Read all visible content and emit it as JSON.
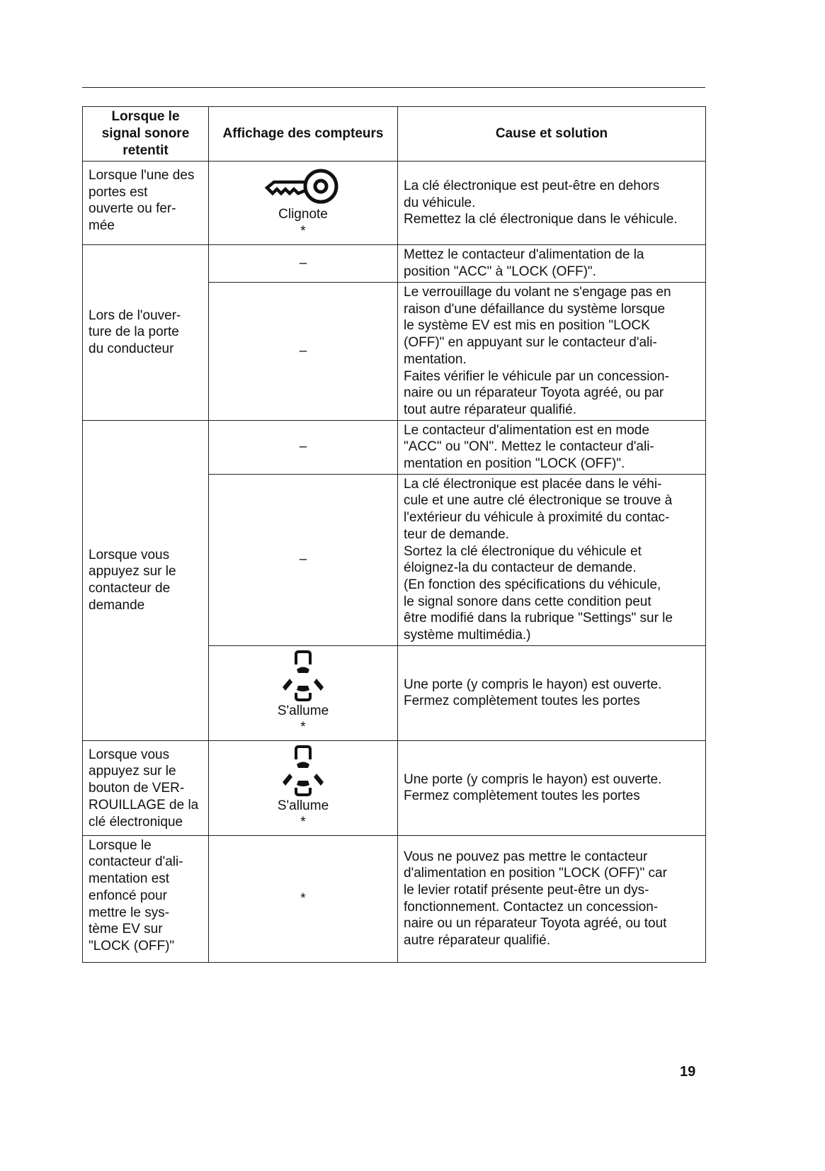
{
  "header": {
    "col1": "Lorsque le\nsignal sonore\nretentit",
    "col2": "Affichage des compteurs",
    "col3": "Cause et solution"
  },
  "rows": [
    {
      "when": "Lorsque l'une des\nportes est\nouverte ou fer-\nmée",
      "icon": "key-icon",
      "display": "Clignote",
      "note": "*",
      "cause": "La clé électronique est peut-être en dehors\ndu véhicule.\nRemettez la clé électronique dans le véhicule."
    },
    {
      "when": "Lors de l'ouver-\nture de la porte\ndu conducteur",
      "sub": [
        {
          "display": "–",
          "cause": "Mettez le contacteur d'alimentation de la\nposition \"ACC\" à \"LOCK (OFF)\"."
        },
        {
          "display": "–",
          "cause": "Le verrouillage du volant ne s'engage pas en\nraison d'une défaillance du système lorsque\nle système EV est mis en position \"LOCK\n(OFF)\" en appuyant sur le contacteur d'ali-\nmentation.\nFaites vérifier le véhicule par un concession-\nnaire ou un réparateur Toyota agréé, ou par\ntout autre réparateur qualifié."
        }
      ]
    },
    {
      "when": "Lorsque vous\nappuyez sur le\ncontacteur de\ndemande",
      "sub": [
        {
          "display": "–",
          "cause": "Le contacteur d'alimentation est en mode\n\"ACC\" ou \"ON\". Mettez le contacteur d'ali-\nmentation en position \"LOCK (OFF)\"."
        },
        {
          "display": "–",
          "cause": "La clé électronique est placée dans le véhi-\ncule et une autre clé électronique se trouve à\nl'extérieur du véhicule à proximité du contac-\nteur de demande.\nSortez la clé électronique du véhicule et\néloignez-la du contacteur de demande.\n(En fonction des spécifications du véhicule,\nle signal sonore dans cette condition peut\nêtre modifié dans la rubrique \"Settings\" sur le\nsystème multimédia.)"
        },
        {
          "icon": "door-open-car-icon",
          "display": "S'allume",
          "note": "*",
          "cause": "Une porte (y compris le hayon) est ouverte.\nFermez complètement toutes les portes"
        }
      ]
    },
    {
      "when": "Lorsque vous\nappuyez sur le\nbouton de VER-\nROUILLAGE de la\nclé électronique",
      "icon": "door-open-car-icon",
      "display": "S'allume",
      "note": "*",
      "cause": "Une porte (y compris le hayon) est ouverte.\nFermez complètement toutes les portes"
    },
    {
      "when": "Lorsque le\ncontacteur d'ali-\nmentation est\nenfoncé pour\nmettre le sys-\ntème EV sur\n\"LOCK (OFF)\"",
      "display": "*",
      "cause": "Vous ne pouvez pas mettre le contacteur\nd'alimentation en position \"LOCK (OFF)\" car\nle levier rotatif présente peut-être un dys-\nfonctionnement. Contactez un concession-\nnaire ou un réparateur Toyota agréé, ou tout\nautre réparateur qualifié."
    }
  ],
  "page_number": "19"
}
